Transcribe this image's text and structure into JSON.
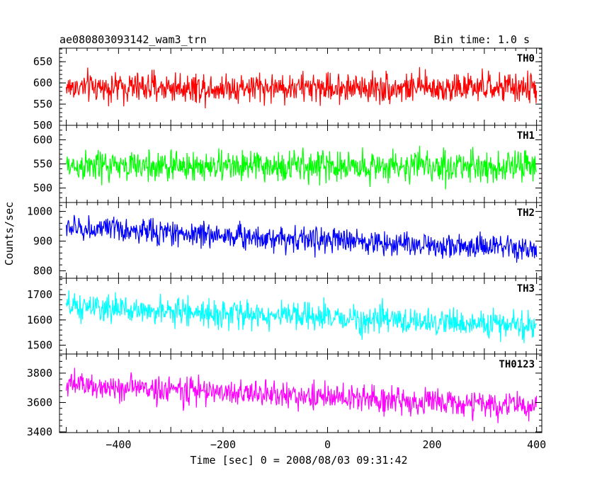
{
  "header": {
    "title": "ae080803093142_wam3_trn",
    "bin_time": "Bin time: 1.0 s"
  },
  "axes": {
    "xlabel": "Time [sec] 0 = 2008/08/03 09:31:42",
    "ylabel": "Counts/sec"
  },
  "chart_data": {
    "type": "line",
    "title": "ae080803093142_wam3_trn",
    "subtitle": "Bin time: 1.0 s",
    "xlabel": "Time [sec] 0 = 2008/08/03 09:31:42",
    "ylabel": "Counts/sec",
    "xlim": [
      -513,
      410
    ],
    "x_range_data": [
      -500,
      400
    ],
    "x_ticks": [
      -400,
      -200,
      0,
      200,
      400
    ],
    "x_tick_labels": [
      "−400",
      "−200",
      "0",
      "200",
      "400"
    ],
    "grid": false,
    "legend": "none",
    "series": [
      {
        "name": "TH0",
        "color": "#ff0000",
        "ylim": [
          500,
          682
        ],
        "y_ticks": [
          500,
          550,
          600,
          650
        ],
        "mean_start": 590,
        "mean_end": 588,
        "amplitude": 60,
        "spread": 25
      },
      {
        "name": "TH1",
        "color": "#00ff00",
        "ylim": [
          470,
          630
        ],
        "y_ticks": [
          500,
          550,
          600
        ],
        "mean_start": 545,
        "mean_end": 545,
        "amplitude": 55,
        "spread": 23
      },
      {
        "name": "TH2",
        "color": "#0000ff",
        "ylim": [
          775,
          1030
        ],
        "y_ticks": [
          800,
          900,
          1000
        ],
        "mean_start": 945,
        "mean_end": 870,
        "amplitude": 85,
        "spread": 30
      },
      {
        "name": "TH3",
        "color": "#00ffff",
        "ylim": [
          1465,
          1765
        ],
        "y_ticks": [
          1500,
          1600,
          1700
        ],
        "mean_start": 1650,
        "mean_end": 1575,
        "amplitude": 95,
        "spread": 38
      },
      {
        "name": "TH0123",
        "color": "#ff00ff",
        "ylim": [
          3395,
          3930
        ],
        "y_ticks": [
          3400,
          3600,
          3800
        ],
        "mean_start": 3720,
        "mean_end": 3570,
        "amplitude": 160,
        "spread": 65
      }
    ]
  }
}
